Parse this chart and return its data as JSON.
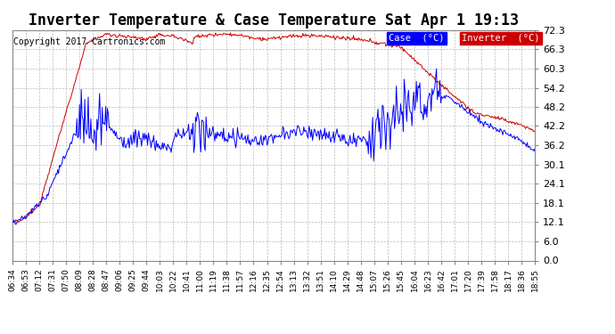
{
  "title": "Inverter Temperature & Case Temperature Sat Apr 1 19:13",
  "copyright": "Copyright 2017 Cartronics.com",
  "background_color": "#ffffff",
  "plot_bg_color": "#ffffff",
  "grid_color": "#bbbbbb",
  "yticks": [
    0.0,
    6.0,
    12.1,
    18.1,
    24.1,
    30.1,
    36.2,
    42.2,
    48.2,
    54.2,
    60.3,
    66.3,
    72.3
  ],
  "ymin": 0.0,
  "ymax": 72.3,
  "legend_case_label": "Case  (°C)",
  "legend_inv_label": "Inverter  (°C)",
  "case_color": "#0000ff",
  "inverter_color": "#cc0000",
  "title_fontsize": 12,
  "copyright_fontsize": 7,
  "xtick_labels": [
    "06:34",
    "06:53",
    "07:12",
    "07:31",
    "07:50",
    "08:09",
    "08:28",
    "08:47",
    "09:06",
    "09:25",
    "09:44",
    "10:03",
    "10:22",
    "10:41",
    "11:00",
    "11:19",
    "11:38",
    "11:57",
    "12:16",
    "12:35",
    "12:54",
    "13:13",
    "13:32",
    "13:51",
    "14:10",
    "14:29",
    "14:48",
    "15:07",
    "15:26",
    "15:45",
    "16:04",
    "16:23",
    "16:42",
    "17:01",
    "17:20",
    "17:39",
    "17:58",
    "18:17",
    "18:36",
    "18:55"
  ]
}
